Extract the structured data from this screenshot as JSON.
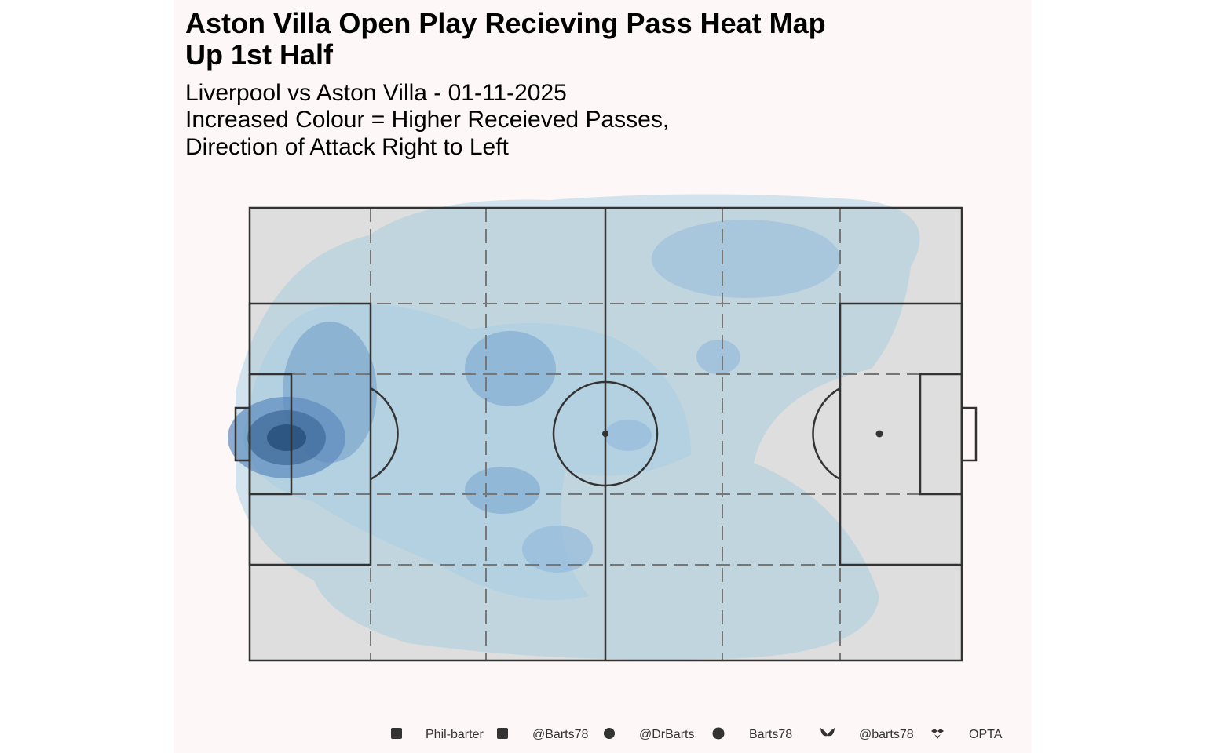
{
  "header": {
    "title": [
      "Aston Villa Open Play Recieving Pass Heat Map",
      "Up 1st Half"
    ],
    "subtitle": [
      "Liverpool vs Aston Villa - 01-11-2025",
      "Increased Colour = Higher Receieved Passes,",
      "Direction of Attack Right to Left"
    ]
  },
  "footer": {
    "links": [
      "Phil-barter",
      "@Barts78",
      "@DrBarts",
      "Barts78",
      "@barts78",
      "OPTA"
    ]
  }
}
